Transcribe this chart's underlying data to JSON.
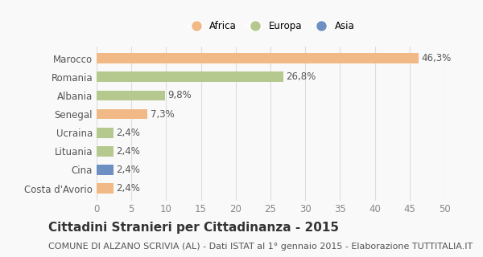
{
  "categories": [
    "Marocco",
    "Romania",
    "Albania",
    "Senegal",
    "Ucraina",
    "Lituania",
    "Cina",
    "Costa d'Avorio"
  ],
  "values": [
    46.3,
    26.8,
    9.8,
    7.3,
    2.4,
    2.4,
    2.4,
    2.4
  ],
  "labels": [
    "46,3%",
    "26,8%",
    "9,8%",
    "7,3%",
    "2,4%",
    "2,4%",
    "2,4%",
    "2,4%"
  ],
  "colors": [
    "#f0b986",
    "#b5c98e",
    "#b5c98e",
    "#f0b986",
    "#b5c98e",
    "#b5c98e",
    "#6e8fc2",
    "#f0b986"
  ],
  "xlim": [
    0,
    50
  ],
  "xticks": [
    0,
    5,
    10,
    15,
    20,
    25,
    30,
    35,
    40,
    45,
    50
  ],
  "title": "Cittadini Stranieri per Cittadinanza - 2015",
  "subtitle": "COMUNE DI ALZANO SCRIVIA (AL) - Dati ISTAT al 1° gennaio 2015 - Elaborazione TUTTITALIA.IT",
  "legend_labels": [
    "Africa",
    "Europa",
    "Asia"
  ],
  "legend_colors": [
    "#f0b986",
    "#b5c98e",
    "#6e8fc2"
  ],
  "bg_color": "#f9f9f9",
  "bar_height": 0.55,
  "grid_color": "#dddddd",
  "label_fontsize": 8.5,
  "tick_label_fontsize": 8.5,
  "title_fontsize": 11,
  "subtitle_fontsize": 8
}
